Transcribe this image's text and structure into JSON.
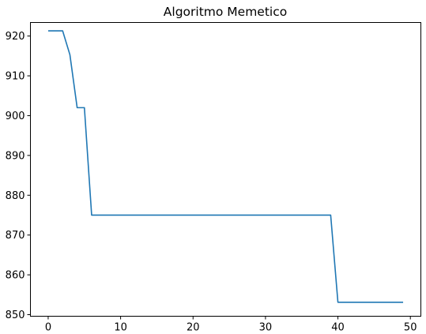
{
  "chart_data": {
    "type": "line",
    "title": "Algoritmo Memetico",
    "xlabel": "",
    "ylabel": "",
    "xlim": [
      -2.45,
      51.45
    ],
    "ylim": [
      849.6,
      923.4
    ],
    "grid": false,
    "x_ticks": [
      0,
      10,
      20,
      30,
      40,
      50
    ],
    "y_ticks": [
      850,
      860,
      870,
      880,
      890,
      900,
      910,
      920
    ],
    "series": [
      {
        "color": "#1f77b4",
        "x": [
          0,
          1,
          2,
          3,
          4,
          5,
          6,
          7,
          8,
          9,
          10,
          11,
          12,
          13,
          14,
          15,
          16,
          17,
          18,
          19,
          20,
          21,
          22,
          23,
          24,
          25,
          26,
          27,
          28,
          29,
          30,
          31,
          32,
          33,
          34,
          35,
          36,
          37,
          38,
          39,
          40,
          41,
          42,
          43,
          44,
          45,
          46,
          47,
          48,
          49
        ],
        "values": [
          921.3,
          921.3,
          921.3,
          915.3,
          902.0,
          902.0,
          875.0,
          875.0,
          875.0,
          875.0,
          875.0,
          875.0,
          875.0,
          875.0,
          875.0,
          875.0,
          875.0,
          875.0,
          875.0,
          875.0,
          875.0,
          875.0,
          875.0,
          875.0,
          875.0,
          875.0,
          875.0,
          875.0,
          875.0,
          875.0,
          875.0,
          875.0,
          875.0,
          875.0,
          875.0,
          875.0,
          875.0,
          875.0,
          875.0,
          875.0,
          853.1,
          853.1,
          853.1,
          853.1,
          853.1,
          853.1,
          853.1,
          853.1,
          853.1,
          853.1
        ]
      }
    ]
  }
}
